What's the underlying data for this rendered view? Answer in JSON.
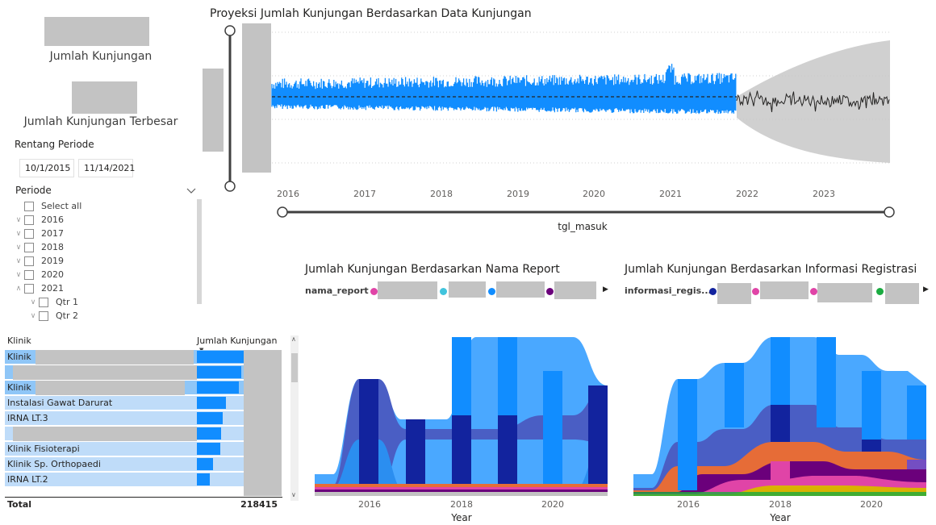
{
  "kpi": {
    "jumlah_kunjungan_label": "Jumlah Kunjungan",
    "jumlah_kunjungan_terbesar_label": "Jumlah Kunjungan Terbesar"
  },
  "rentang_periode": {
    "title": "Rentang Periode",
    "start": "10/1/2015",
    "end": "11/14/2021"
  },
  "periode_slicer": {
    "title": "Periode",
    "select_all": "Select all",
    "years": [
      "2016",
      "2017",
      "2018",
      "2019",
      "2020",
      "2021"
    ],
    "quarters": [
      "Qtr 1",
      "Qtr 2"
    ]
  },
  "forecast": {
    "title": "Proyeksi Jumlah Kunjungan Berdasarkan Data Kunjungan",
    "x_label": "tgl_masuk",
    "x_ticks": [
      "2016",
      "2017",
      "2018",
      "2019",
      "2020",
      "2021",
      "2022",
      "2023"
    ],
    "colors": {
      "actual": "#118dff",
      "forecast": "#252423",
      "confidence": "#c8c8c8"
    }
  },
  "klinik_table": {
    "col_klinik": "Klinik",
    "col_jumlah": "Jumlah Kunjungan",
    "rows": [
      {
        "name": "Klinik",
        "fill": 1.0,
        "selected": true
      },
      {
        "name": "",
        "fill": 0.95,
        "selected": true
      },
      {
        "name": "Klinik",
        "fill": 0.9,
        "selected": true
      },
      {
        "name": "Instalasi Gawat Darurat",
        "fill": 0.62,
        "selected": false
      },
      {
        "name": "IRNA LT.3",
        "fill": 0.55,
        "selected": false
      },
      {
        "name": "",
        "fill": 0.52,
        "selected": false
      },
      {
        "name": "Klinik Fisioterapi",
        "fill": 0.5,
        "selected": false
      },
      {
        "name": "Klinik Sp. Orthopaedi",
        "fill": 0.34,
        "selected": false
      },
      {
        "name": "IRNA LT.2",
        "fill": 0.27,
        "selected": false
      }
    ],
    "total_label": "Total",
    "total_value": "218415"
  },
  "ribbon_nama_report": {
    "title": "Jumlah Kunjungan Berdasarkan Nama Report",
    "legend_field": "nama_report",
    "legend_colors": [
      "#e044a7",
      "#41c4dd",
      "#118dff",
      "#6b007b"
    ],
    "x_label": "Year",
    "x_ticks": [
      "2016",
      "2018",
      "2020"
    ]
  },
  "ribbon_informasi": {
    "title": "Jumlah Kunjungan Berdasarkan Informasi Registrasi",
    "legend_field": "informasi_regis...",
    "legend_colors": [
      "#12239e",
      "#e044a7",
      "#e044a7",
      "#1aab40"
    ],
    "x_label": "Year",
    "x_ticks": [
      "2016",
      "2018",
      "2020"
    ]
  }
}
